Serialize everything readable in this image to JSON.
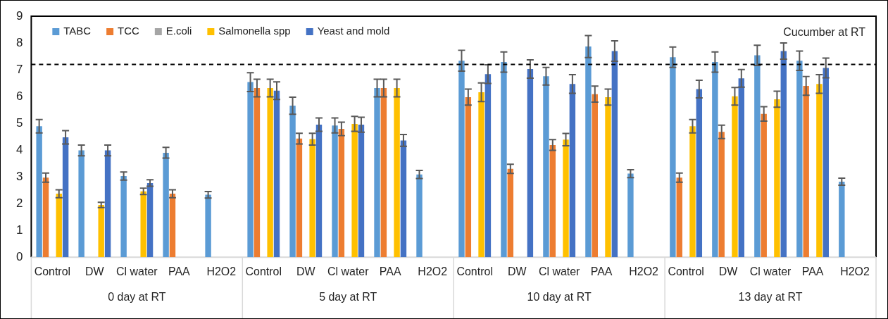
{
  "chart_data": {
    "type": "bar",
    "title": "Cucumber at RT",
    "categories": [
      "Control",
      "DW",
      "Cl water",
      "PAA",
      "H2O2",
      "Control",
      "DW",
      "Cl water",
      "PAA",
      "H2O2",
      "Control",
      "DW",
      "Cl water",
      "PAA",
      "H2O2",
      "Control",
      "DW",
      "Cl water",
      "PAA",
      "H2O2"
    ],
    "series": [
      {
        "name": "TABC",
        "color": "#5b9bd5",
        "values": [
          4.89,
          3.99,
          3.03,
          3.9,
          2.33,
          6.54,
          5.66,
          4.92,
          6.32,
          3.09,
          7.34,
          7.29,
          6.76,
          7.87,
          3.12,
          7.47,
          7.29,
          7.54,
          7.34,
          2.82
        ],
        "errors": [
          0.25,
          0.2,
          0.15,
          0.2,
          0.12,
          0.35,
          0.32,
          0.28,
          0.33,
          0.15,
          0.39,
          0.38,
          0.33,
          0.41,
          0.15,
          0.38,
          0.38,
          0.38,
          0.36,
          0.13
        ]
      },
      {
        "name": "TCC",
        "color": "#ed7d31",
        "values": [
          2.97,
          null,
          null,
          2.37,
          null,
          6.32,
          4.43,
          4.79,
          6.32,
          null,
          5.98,
          3.3,
          4.19,
          6.09,
          null,
          2.97,
          4.68,
          5.35,
          6.4,
          null
        ],
        "errors": [
          0.17,
          null,
          null,
          0.15,
          null,
          0.33,
          0.2,
          0.25,
          0.33,
          null,
          0.3,
          0.17,
          0.2,
          0.3,
          null,
          0.17,
          0.25,
          0.27,
          0.35,
          null
        ]
      },
      {
        "name": "E.coli",
        "color": "#a5a5a5",
        "values": [
          null,
          null,
          null,
          null,
          null,
          null,
          null,
          null,
          null,
          null,
          null,
          null,
          null,
          null,
          null,
          null,
          null,
          null,
          null,
          null
        ]
      },
      {
        "name": "Salmonella spp",
        "color": "#ffc000",
        "values": [
          2.37,
          1.95,
          2.46,
          null,
          null,
          6.32,
          4.41,
          4.98,
          6.32,
          null,
          6.16,
          null,
          4.39,
          5.98,
          null,
          4.89,
          6.01,
          5.9,
          6.47,
          null
        ],
        "errors": [
          0.15,
          0.1,
          0.12,
          null,
          null,
          0.33,
          0.22,
          0.28,
          0.33,
          null,
          0.35,
          null,
          0.23,
          0.3,
          null,
          0.25,
          0.33,
          0.3,
          0.35,
          null
        ]
      },
      {
        "name": "Yeast and mold",
        "color": "#4472c4",
        "values": [
          4.48,
          3.99,
          2.77,
          null,
          null,
          6.22,
          4.95,
          4.95,
          4.36,
          null,
          6.84,
          7.03,
          6.47,
          7.7,
          null,
          6.28,
          6.68,
          7.7,
          7.07,
          null
        ],
        "errors": [
          0.25,
          0.2,
          0.12,
          null,
          null,
          0.33,
          0.25,
          0.28,
          0.22,
          null,
          0.35,
          0.34,
          0.35,
          0.38,
          null,
          0.33,
          0.33,
          0.3,
          0.37,
          null
        ]
      }
    ],
    "ylim": [
      0,
      9
    ],
    "yticks": [
      0,
      1,
      2,
      3,
      4,
      5,
      6,
      7,
      8,
      9
    ],
    "grid": false,
    "legend": "top left",
    "ref_lines": [
      {
        "axis": "y",
        "value": 7.2,
        "color": "#000000",
        "line_style": "dashed"
      }
    ],
    "annotations": [
      "0 day at RT",
      "5 day at RT",
      "10 day at RT",
      "13 day at RT"
    ]
  }
}
